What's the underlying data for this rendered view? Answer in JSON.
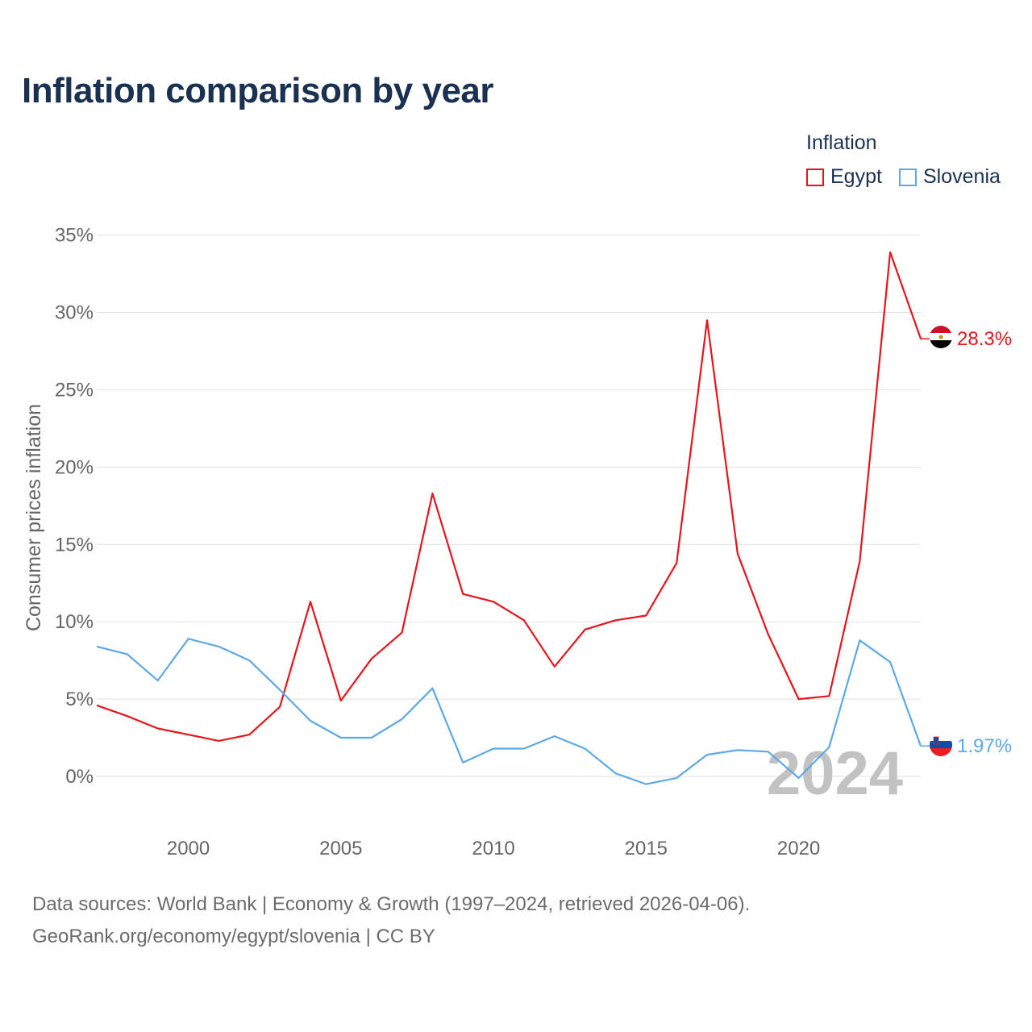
{
  "title": "Inflation comparison by year",
  "legend": {
    "title": "Inflation",
    "items": [
      {
        "name": "Egypt",
        "color": "#e8141c"
      },
      {
        "name": "Slovenia",
        "color": "#5ea8e6"
      }
    ]
  },
  "footer": {
    "line1": "Data sources: World Bank | Economy & Growth (1997–2024, retrieved 2026-04-06).",
    "line2": "GeoRank.org/economy/egypt/slovenia | CC BY"
  },
  "chart_data": {
    "type": "line",
    "title": "Inflation comparison by year",
    "xlabel": "",
    "ylabel": "Consumer prices inflation",
    "xlim": [
      1997,
      2024
    ],
    "ylim": [
      -3,
      36
    ],
    "x_ticks": [
      2000,
      2005,
      2010,
      2015,
      2020
    ],
    "y_ticks": [
      {
        "value": 0,
        "label": "0%"
      },
      {
        "value": 5,
        "label": "5%"
      },
      {
        "value": 10,
        "label": "10%"
      },
      {
        "value": 15,
        "label": "15%"
      },
      {
        "value": 20,
        "label": "20%"
      },
      {
        "value": 25,
        "label": "25%"
      },
      {
        "value": 30,
        "label": "30%"
      },
      {
        "value": 35,
        "label": "35%"
      }
    ],
    "grid": true,
    "legend_position": "top-right",
    "year_watermark": "2024",
    "x": [
      1997,
      1998,
      1999,
      2000,
      2001,
      2002,
      2003,
      2004,
      2005,
      2006,
      2007,
      2008,
      2009,
      2010,
      2011,
      2012,
      2013,
      2014,
      2015,
      2016,
      2017,
      2018,
      2019,
      2020,
      2021,
      2022,
      2023,
      2024
    ],
    "series": [
      {
        "name": "Egypt",
        "color": "#e8141c",
        "end_label": "28.3%",
        "values": [
          4.6,
          3.9,
          3.1,
          2.7,
          2.3,
          2.7,
          4.5,
          11.3,
          4.9,
          7.6,
          9.3,
          18.3,
          11.8,
          11.3,
          10.1,
          7.1,
          9.5,
          10.1,
          10.4,
          13.8,
          29.5,
          14.4,
          9.2,
          5.0,
          5.2,
          13.9,
          33.9,
          28.3
        ]
      },
      {
        "name": "Slovenia",
        "color": "#5ea8e6",
        "end_label": "1.97%",
        "values": [
          8.4,
          7.9,
          6.2,
          8.9,
          8.4,
          7.5,
          5.6,
          3.6,
          2.5,
          2.5,
          3.7,
          5.7,
          0.9,
          1.8,
          1.8,
          2.6,
          1.8,
          0.2,
          -0.5,
          -0.1,
          1.4,
          1.7,
          1.6,
          -0.1,
          1.9,
          8.8,
          7.4,
          1.97
        ]
      }
    ]
  }
}
